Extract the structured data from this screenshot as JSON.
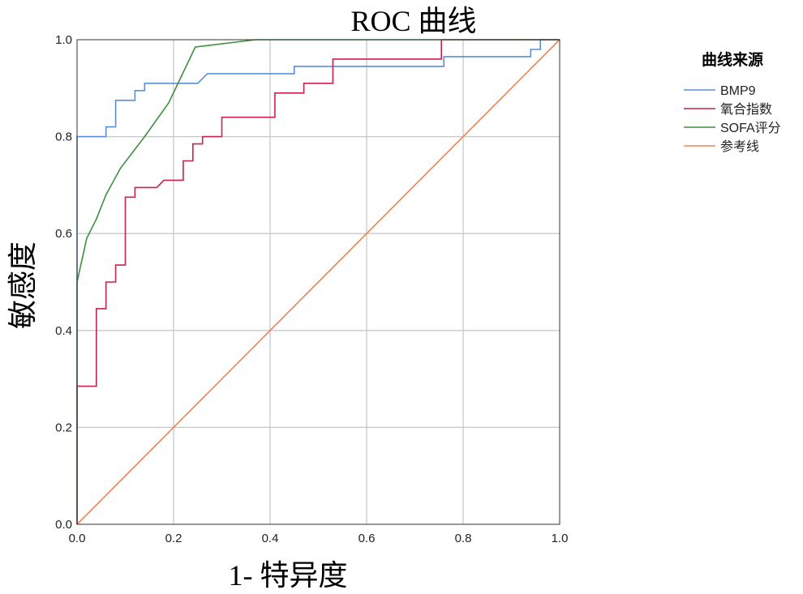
{
  "chart_data": {
    "type": "line",
    "title": "ROC 曲线",
    "xlabel": "1- 特异度",
    "ylabel": "敏感度",
    "xlim": [
      0,
      1
    ],
    "ylim": [
      0,
      1
    ],
    "xticks": [
      "0.0",
      "0.2",
      "0.4",
      "0.6",
      "0.8",
      "1.0"
    ],
    "yticks": [
      "0.0",
      "0.2",
      "0.4",
      "0.6",
      "0.8",
      "1.0"
    ],
    "grid": true,
    "legend_title": "曲线来源",
    "legend_position": "top-right, outside plot",
    "series": [
      {
        "name": "BMP9",
        "color": "#5b8fd6",
        "points": [
          [
            0,
            0
          ],
          [
            0,
            0.8
          ],
          [
            0.06,
            0.8
          ],
          [
            0.06,
            0.82
          ],
          [
            0.08,
            0.82
          ],
          [
            0.08,
            0.875
          ],
          [
            0.12,
            0.875
          ],
          [
            0.12,
            0.895
          ],
          [
            0.14,
            0.895
          ],
          [
            0.14,
            0.91
          ],
          [
            0.25,
            0.91
          ],
          [
            0.27,
            0.93
          ],
          [
            0.45,
            0.93
          ],
          [
            0.45,
            0.945
          ],
          [
            0.76,
            0.945
          ],
          [
            0.76,
            0.965
          ],
          [
            0.94,
            0.965
          ],
          [
            0.94,
            0.98
          ],
          [
            0.96,
            0.98
          ],
          [
            0.96,
            1.0
          ],
          [
            1.0,
            1.0
          ]
        ]
      },
      {
        "name": "氧合指数",
        "color": "#c8234a",
        "points": [
          [
            0,
            0
          ],
          [
            0,
            0.285
          ],
          [
            0.04,
            0.285
          ],
          [
            0.04,
            0.445
          ],
          [
            0.06,
            0.445
          ],
          [
            0.06,
            0.5
          ],
          [
            0.08,
            0.5
          ],
          [
            0.08,
            0.535
          ],
          [
            0.1,
            0.535
          ],
          [
            0.1,
            0.675
          ],
          [
            0.12,
            0.675
          ],
          [
            0.12,
            0.695
          ],
          [
            0.165,
            0.695
          ],
          [
            0.18,
            0.71
          ],
          [
            0.22,
            0.71
          ],
          [
            0.22,
            0.75
          ],
          [
            0.24,
            0.75
          ],
          [
            0.24,
            0.785
          ],
          [
            0.26,
            0.785
          ],
          [
            0.26,
            0.8
          ],
          [
            0.3,
            0.8
          ],
          [
            0.3,
            0.84
          ],
          [
            0.41,
            0.84
          ],
          [
            0.41,
            0.89
          ],
          [
            0.47,
            0.89
          ],
          [
            0.47,
            0.91
          ],
          [
            0.53,
            0.91
          ],
          [
            0.53,
            0.96
          ],
          [
            0.755,
            0.96
          ],
          [
            0.755,
            1.0
          ],
          [
            1.0,
            1.0
          ]
        ]
      },
      {
        "name": "SOFA评分",
        "color": "#3f8f3f",
        "points": [
          [
            0,
            0
          ],
          [
            0,
            0.5
          ],
          [
            0.02,
            0.59
          ],
          [
            0.04,
            0.63
          ],
          [
            0.06,
            0.68
          ],
          [
            0.09,
            0.735
          ],
          [
            0.14,
            0.8
          ],
          [
            0.19,
            0.87
          ],
          [
            0.245,
            0.985
          ],
          [
            0.37,
            1.0
          ],
          [
            1.0,
            1.0
          ]
        ]
      },
      {
        "name": "参考线",
        "color": "#ee8352",
        "points": [
          [
            0,
            0
          ],
          [
            1,
            1
          ]
        ]
      }
    ]
  }
}
